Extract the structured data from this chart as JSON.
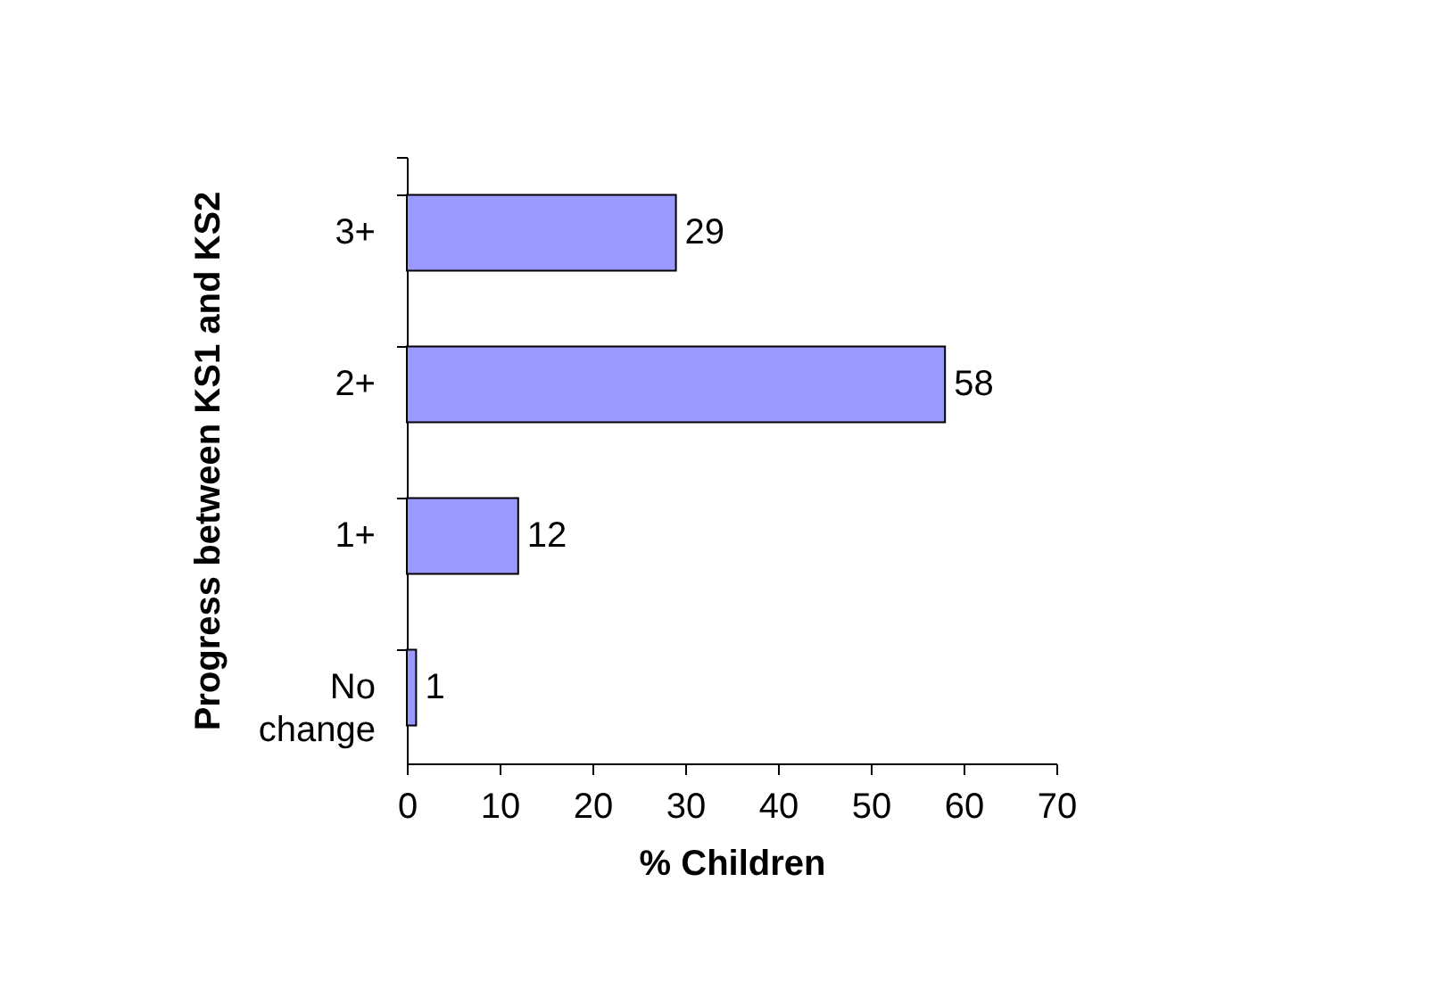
{
  "chart_data": {
    "type": "bar",
    "orientation": "horizontal",
    "xlabel": "% Children",
    "ylabel": "Progress between KS1 and KS2",
    "categories": [
      "3+",
      "2+",
      "1+",
      "No change"
    ],
    "values": [
      29,
      58,
      12,
      1
    ],
    "color": "#9999ff",
    "data_labels": true,
    "xlim": [
      0,
      70
    ],
    "xticks": [
      0,
      10,
      20,
      30,
      40,
      50,
      60,
      70
    ],
    "grid": false
  }
}
